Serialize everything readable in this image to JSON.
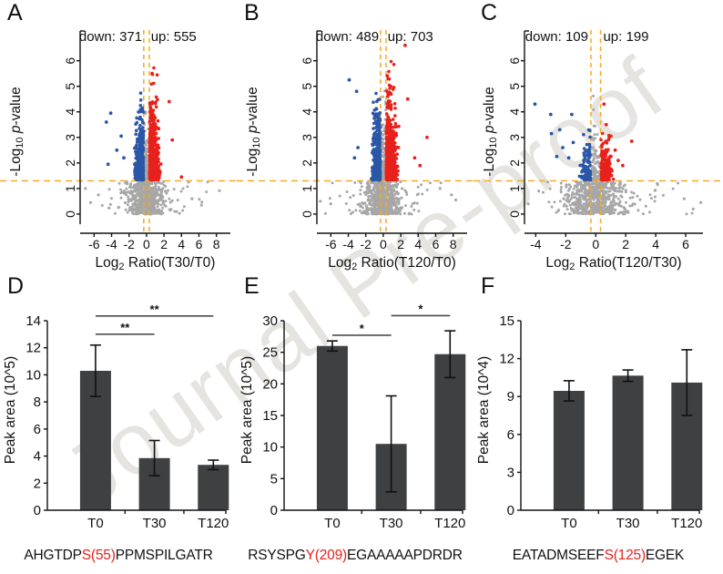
{
  "figure": {
    "watermark": "Journal Pre-proof",
    "background": "#ffffff"
  },
  "colors": {
    "up": "#e8211c",
    "down": "#2a57a7",
    "nonsig": "#a7a7a7",
    "threshold_line": "#f6a821",
    "axis": "#111111",
    "bar_fill": "#3f4041",
    "error_bar": "#111111",
    "sig_line": "#4f4a48",
    "sequence_highlight": "#e8211c"
  },
  "chart_data": [
    {
      "id": "A",
      "type": "scatter",
      "subtype": "volcano",
      "annotation": {
        "down": "down: 371",
        "up": "up: 555"
      },
      "counts": {
        "down": 371,
        "up": 555
      },
      "xlabel": {
        "pre": "Log",
        "sub": "2",
        "post": " Ratio(T30/T0)"
      },
      "ylabel": {
        "pre": "-Log",
        "sub": "10",
        "italic": " p",
        "post": "-value"
      },
      "xticks": [
        -6,
        -4,
        -2,
        0,
        2,
        4,
        6,
        8
      ],
      "yticks": [
        0,
        1,
        2,
        3,
        4,
        5,
        6
      ],
      "xlim": [
        -7.6,
        9.6
      ],
      "ylim": [
        -0.75,
        7.2
      ],
      "thresholds": {
        "pvalue_line": 1.3,
        "fold_lines": [
          -0.32,
          0.32
        ]
      },
      "cloud": {
        "seed": 101,
        "gray_below": 680,
        "gray_band": 120,
        "band_top": 4.9,
        "down_spread": 0.42,
        "up_spread": 0.48,
        "down_decay": 0.72,
        "up_decay": 0.85,
        "down_ymax": 4.85,
        "up_ymax": 5.75,
        "down_xmin": -2.7,
        "up_xmax": 3.4
      },
      "outliers": {
        "down": [
          [
            -4.1,
            3.95
          ],
          [
            -4.6,
            3.6
          ],
          [
            -2.9,
            3.05
          ],
          [
            -3.4,
            2.5
          ],
          [
            -4.4,
            1.95
          ],
          [
            -2.6,
            2.2
          ]
        ],
        "up": [
          [
            4.0,
            1.45
          ],
          [
            2.95,
            2.9
          ],
          [
            2.6,
            4.4
          ]
        ],
        "nonsig": [
          [
            -7.0,
            1.0
          ],
          [
            8.35,
            0.92
          ],
          [
            -6.4,
            0.45
          ],
          [
            6.3,
            0.35
          ],
          [
            5.2,
            0.6
          ],
          [
            -5.5,
            0.75
          ]
        ]
      }
    },
    {
      "id": "B",
      "type": "scatter",
      "subtype": "volcano",
      "annotation": {
        "down": "down: 489",
        "up": "up: 703"
      },
      "counts": {
        "down": 489,
        "up": 703
      },
      "xlabel": {
        "pre": "Log",
        "sub": "2",
        "post": " Ratio(T120/T0)"
      },
      "ylabel": {
        "pre": "-Log",
        "sub": "10",
        "italic": " p",
        "post": "-value"
      },
      "xticks": [
        -6,
        -4,
        -2,
        0,
        2,
        4,
        6,
        8
      ],
      "yticks": [
        0,
        1,
        2,
        3,
        4,
        5,
        6
      ],
      "xlim": [
        -7.6,
        9.6
      ],
      "ylim": [
        -0.75,
        7.2
      ],
      "thresholds": {
        "pvalue_line": 1.3,
        "fold_lines": [
          -0.32,
          0.32
        ]
      },
      "cloud": {
        "seed": 202,
        "gray_below": 700,
        "gray_band": 130,
        "band_top": 5.0,
        "down_spread": 0.4,
        "up_spread": 0.5,
        "down_decay": 0.8,
        "up_decay": 0.95,
        "down_ymax": 5.0,
        "up_ymax": 6.2,
        "down_xmin": -2.6,
        "up_xmax": 3.2
      },
      "outliers": {
        "down": [
          [
            -3.9,
            5.25
          ],
          [
            -3.05,
            4.8
          ],
          [
            -2.9,
            2.6
          ],
          [
            -3.3,
            2.2
          ]
        ],
        "up": [
          [
            2.5,
            6.6
          ],
          [
            5.0,
            3.0
          ],
          [
            3.6,
            2.2
          ],
          [
            4.2,
            1.9
          ],
          [
            2.8,
            4.5
          ]
        ],
        "nonsig": [
          [
            -7.2,
            0.5
          ],
          [
            8.3,
            0.55
          ],
          [
            6.5,
            1.0
          ],
          [
            -6.0,
            0.4
          ],
          [
            7.8,
            0.75
          ]
        ]
      }
    },
    {
      "id": "C",
      "type": "scatter",
      "subtype": "volcano",
      "annotation": {
        "down": "down: 109",
        "up": "up: 199"
      },
      "counts": {
        "down": 109,
        "up": 199
      },
      "xlabel": {
        "pre": "Log",
        "sub": "2",
        "post": " Ratio(T120/T30)"
      },
      "ylabel": {
        "pre": "-Log",
        "sub": "10",
        "italic": " p",
        "post": "-value"
      },
      "xticks": [
        -4,
        -2,
        0,
        2,
        4,
        6
      ],
      "yticks": [
        0,
        1,
        2,
        3,
        4,
        5,
        6
      ],
      "xlim": [
        -4.75,
        7.15
      ],
      "ylim": [
        -0.75,
        7.2
      ],
      "thresholds": {
        "pvalue_line": 1.3,
        "fold_lines": [
          -0.32,
          0.32
        ]
      },
      "cloud": {
        "seed": 303,
        "gray_below": 620,
        "gray_band": 90,
        "band_top": 4.8,
        "down_spread": 0.3,
        "up_spread": 0.33,
        "down_decay": 0.5,
        "up_decay": 0.5,
        "down_ymax": 3.3,
        "up_ymax": 3.2,
        "down_xmin": -1.9,
        "up_xmax": 2.0
      },
      "outliers": {
        "down": [
          [
            -4.05,
            4.3
          ],
          [
            -3.0,
            3.9
          ],
          [
            -1.6,
            3.9
          ],
          [
            -2.95,
            3.15
          ],
          [
            -2.4,
            3.3
          ],
          [
            -2.2,
            2.6
          ],
          [
            -1.5,
            2.8
          ],
          [
            -2.6,
            2.25
          ],
          [
            -1.8,
            2.2
          ]
        ],
        "up": [
          [
            0.55,
            4.3
          ],
          [
            2.4,
            2.85
          ],
          [
            0.7,
            3.5
          ],
          [
            1.5,
            2.1
          ],
          [
            1.8,
            1.9
          ],
          [
            1.3,
            2.5
          ]
        ],
        "nonsig": [
          [
            -4.5,
            0.4
          ],
          [
            7.0,
            0.45
          ],
          [
            5.9,
            0.6
          ],
          [
            4.1,
            1.2
          ],
          [
            -3.8,
            0.9
          ],
          [
            6.5,
            0.2
          ]
        ]
      }
    },
    {
      "id": "D",
      "type": "bar",
      "categories": [
        "T0",
        "T30",
        "T120"
      ],
      "values": [
        10.3,
        3.85,
        3.35
      ],
      "errors": [
        1.9,
        1.3,
        0.35
      ],
      "ylabel": "Peak area (10^5)",
      "yticks": [
        0,
        2,
        4,
        6,
        8,
        10,
        12,
        14
      ],
      "ylim": [
        0,
        14
      ],
      "significance": [
        {
          "a": 0,
          "b": 1,
          "y": 13.0,
          "label": "**"
        },
        {
          "a": 0,
          "b": 2,
          "y": 14.35,
          "label": "**"
        }
      ],
      "sequence": {
        "pre": "AHGTDP",
        "mod": "S(55)",
        "post": "PPMSPILGATR"
      }
    },
    {
      "id": "E",
      "type": "bar",
      "categories": [
        "T0",
        "T30",
        "T120"
      ],
      "values": [
        26.0,
        10.5,
        24.7
      ],
      "errors": [
        0.8,
        7.6,
        3.7
      ],
      "ylabel": "Peak area (10^5)",
      "yticks": [
        0,
        5,
        10,
        15,
        20,
        25,
        30
      ],
      "ylim": [
        0,
        30
      ],
      "significance": [
        {
          "a": 0,
          "b": 1,
          "y": 27.7,
          "label": "*"
        },
        {
          "a": 1,
          "b": 2,
          "y": 30.8,
          "label": "*"
        }
      ],
      "sequence": {
        "pre": "RSYSPG",
        "mod": "Y(209)",
        "post": "EGAAAAAPDRDR"
      }
    },
    {
      "id": "F",
      "type": "bar",
      "categories": [
        "T0",
        "T30",
        "T120"
      ],
      "values": [
        9.45,
        10.65,
        10.1
      ],
      "errors": [
        0.8,
        0.45,
        2.6
      ],
      "ylabel": "Peak area (10^4)",
      "yticks": [
        0,
        3,
        6,
        9,
        12,
        15
      ],
      "ylim": [
        0,
        15
      ],
      "significance": [],
      "sequence": {
        "pre": "EATADMSEEF",
        "mod": "S(125)",
        "post": "EGEK"
      }
    }
  ]
}
